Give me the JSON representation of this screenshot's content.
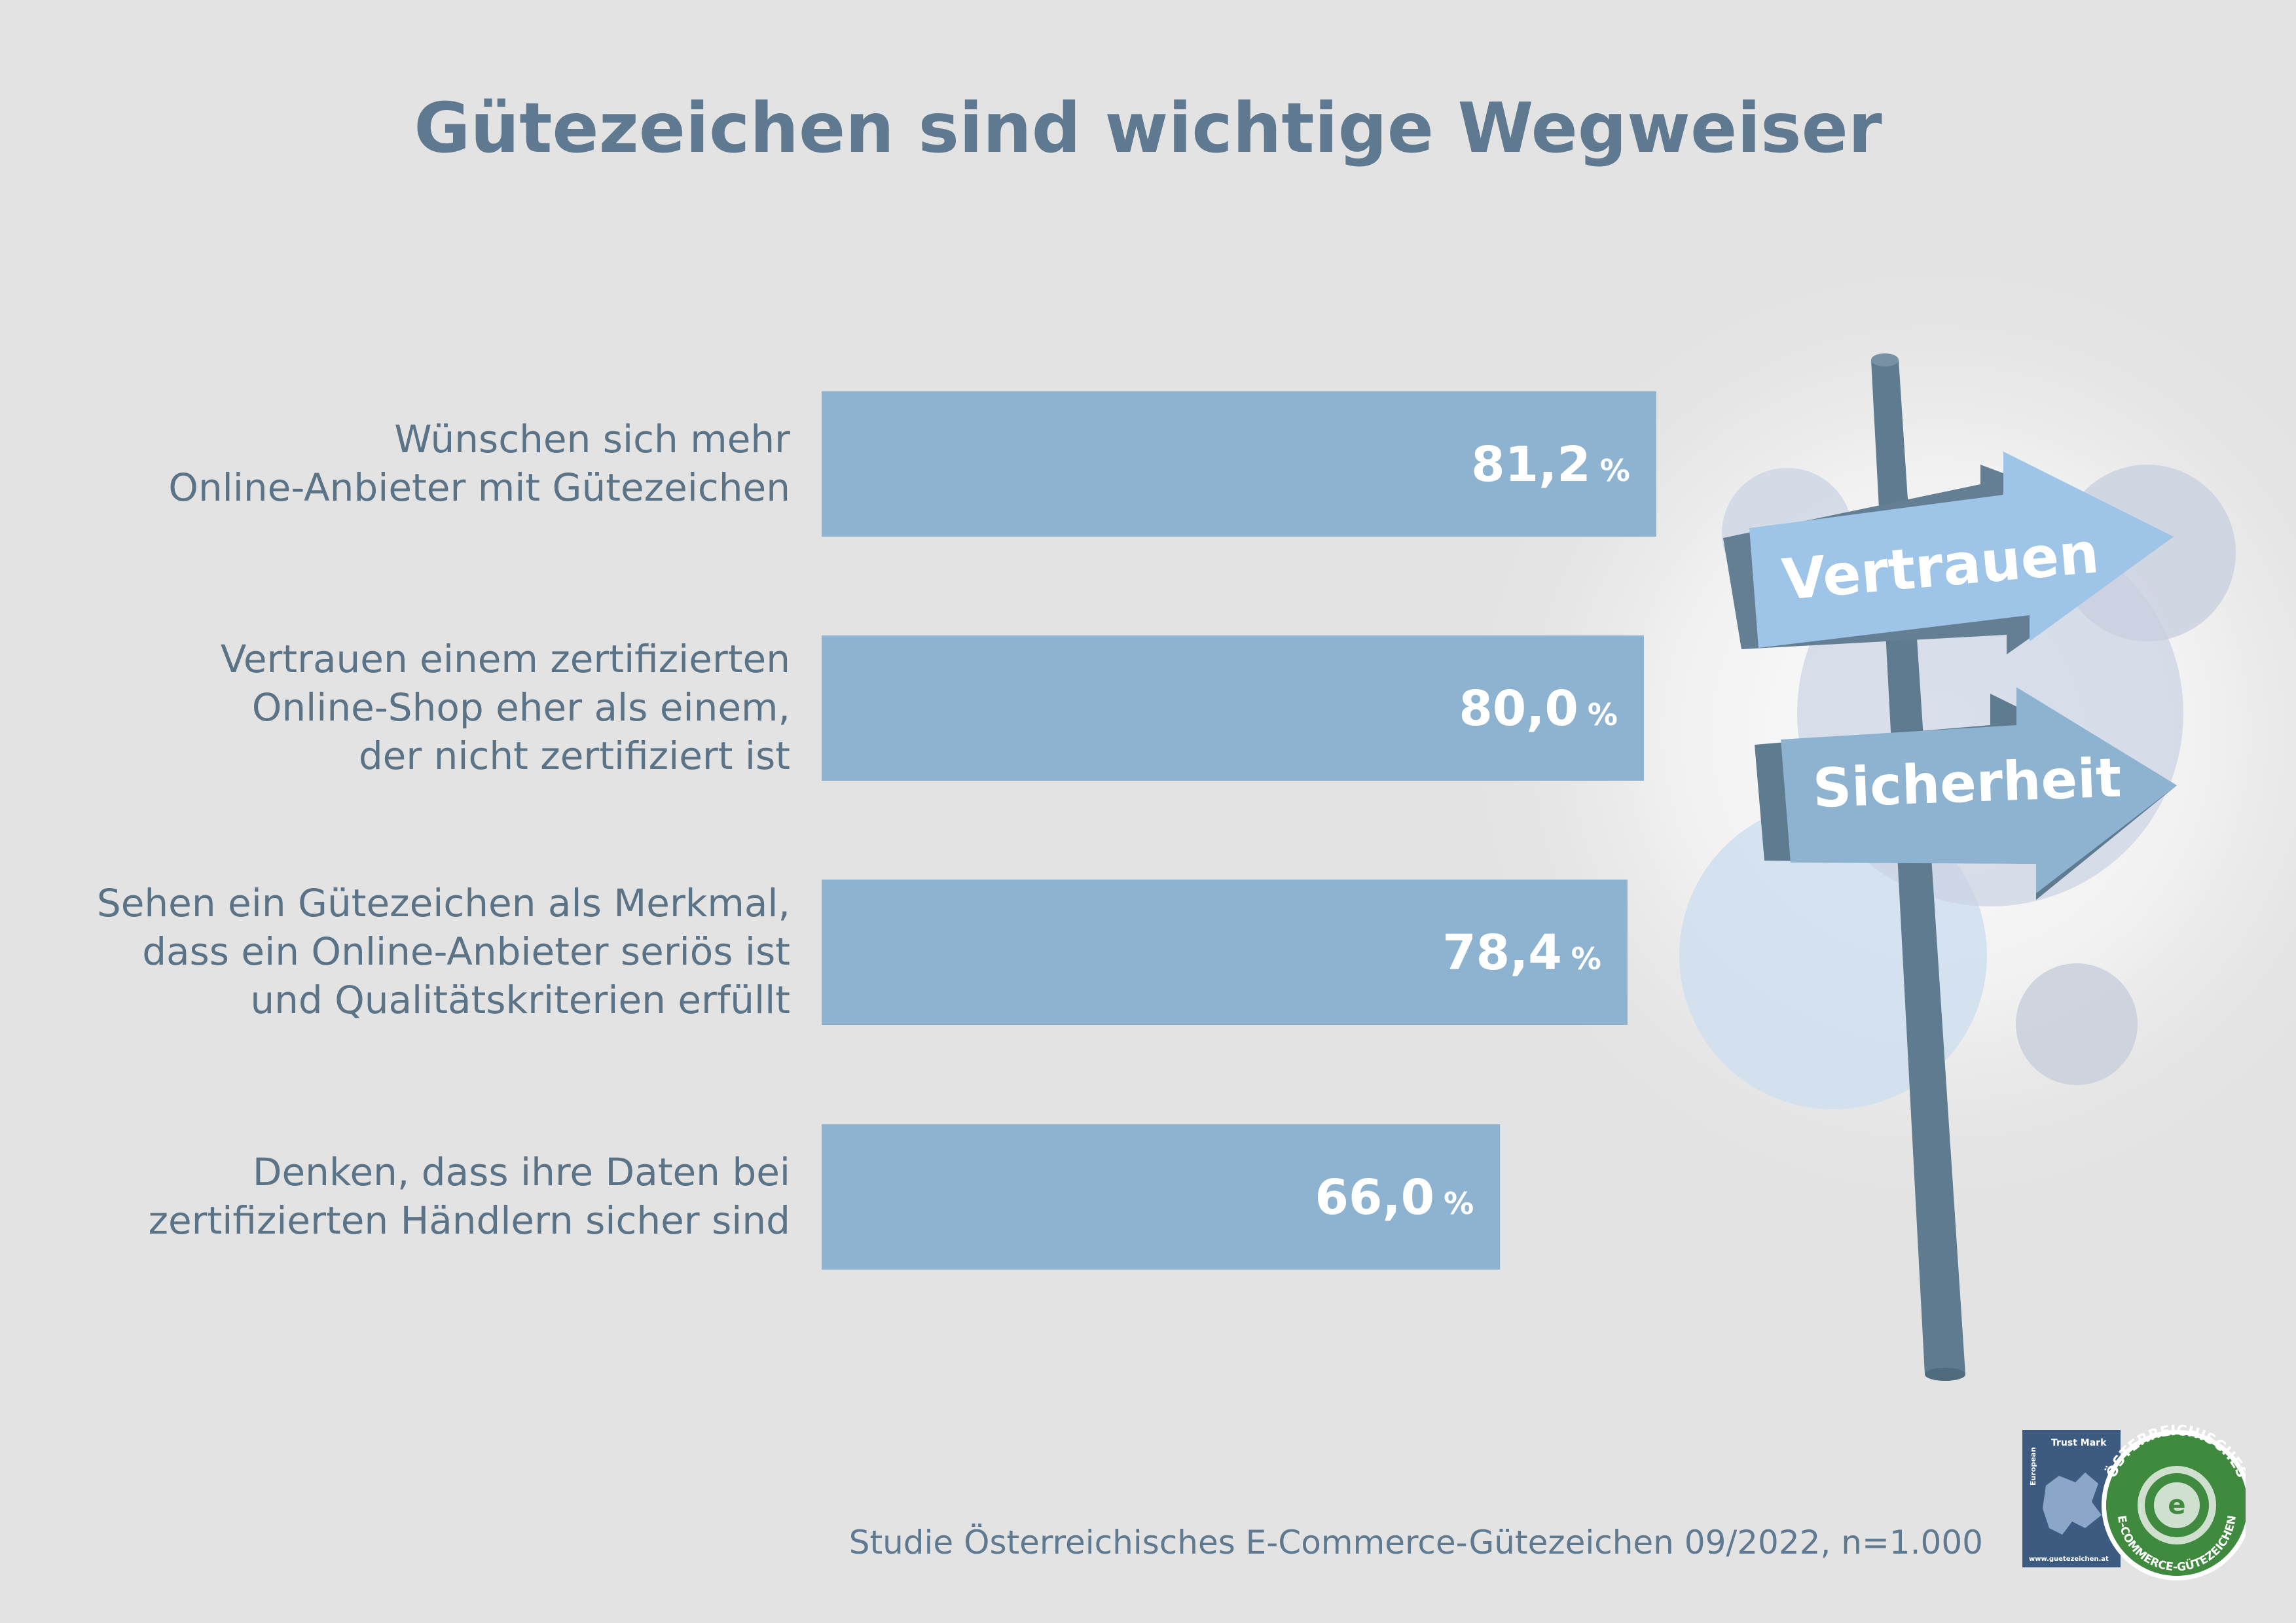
{
  "title": "Gütezeichen sind wichtige Wegweiser",
  "source": "Studie Österreichisches E-Commerce-Gütezeichen 09/2022, n=1.000",
  "signs": {
    "top": "Vertrauen",
    "bottom": "Sicherheit"
  },
  "logos": {
    "trustmark_top": "Trust Mark",
    "trustmark_side": "European",
    "trustmark_url": "www.guetezeichen.at",
    "seal_ring_top": "ÖSTERREICHISCHES",
    "seal_ring_bottom": "E-COMMERCE-GÜTEZEICHEN"
  },
  "colors": {
    "bar": "#8eb3d1",
    "text": "#5b7387",
    "title": "#5f7a90",
    "pole": "#5f7b90",
    "sign_light": "#9ec4e8"
  },
  "chart_data": {
    "type": "bar",
    "orientation": "horizontal",
    "title": "Gütezeichen sind wichtige Wegweiser",
    "unit": "%",
    "xlim": [
      0,
      100
    ],
    "grid": false,
    "categories": [
      [
        "Wünschen sich mehr",
        "Online-Anbieter mit Gütezeichen"
      ],
      [
        "Vertrauen einem zertifizierten",
        "Online-Shop eher als einem,",
        "der nicht zertifiziert ist"
      ],
      [
        "Sehen ein Gütezeichen als Merkmal,",
        "dass ein Online-Anbieter seriös ist",
        "und Qualitätskriterien erfüllt"
      ],
      [
        "Denken, dass ihre Daten bei",
        "zertifizierten Händlern sicher sind"
      ]
    ],
    "values": [
      81.2,
      80.0,
      78.4,
      66.0
    ],
    "value_labels": [
      "81,2",
      "80,0",
      "78,4",
      "66,0"
    ]
  }
}
